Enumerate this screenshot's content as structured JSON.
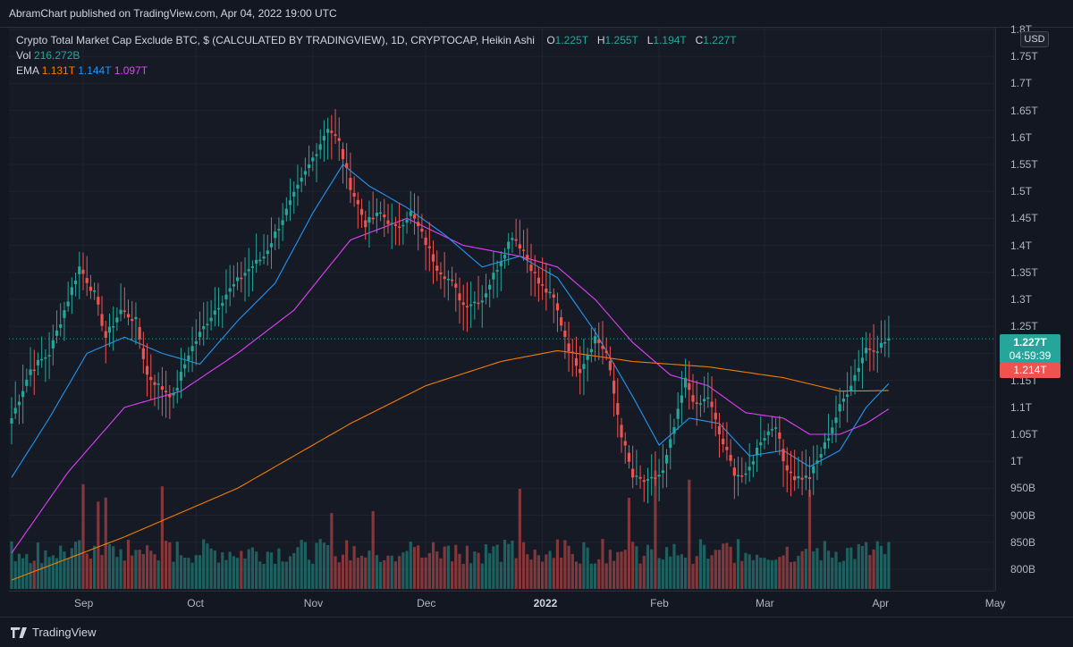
{
  "publish_line": "AbramChart published on TradingView.com, Apr 04, 2022 19:00 UTC",
  "legend": {
    "symbol": "Crypto Total Market Cap Exclude BTC, $ (CALCULATED BY TRADINGVIEW), 1D, CRYPTOCAP, Heikin Ashi",
    "o_label": "O",
    "o_value": "1.225T",
    "h_label": "H",
    "h_value": "1.255T",
    "l_label": "L",
    "l_value": "1.194T",
    "c_label": "C",
    "c_value": "1.227T",
    "vol_label": "Vol",
    "vol_value": "216.272B",
    "ema_label": "EMA",
    "ema_values": [
      "1.131T",
      "1.144T",
      "1.097T"
    ]
  },
  "currency": "USD",
  "last_price": "1.227T",
  "countdown": "04:59:39",
  "close_marker": "1.214T",
  "brand": "TradingView",
  "colors": {
    "up": "#26a69a",
    "down": "#ef5350",
    "ema_long": "#f57c00",
    "ema_mid": "#2196f3",
    "ema_short": "#e040fb"
  },
  "chart_data": {
    "type": "candlestick",
    "title": "Crypto Total Market Cap Exclude BTC",
    "price_axis": {
      "unit": "USD",
      "ticks": [
        {
          "label": "1.8T",
          "value": 1.8
        },
        {
          "label": "1.75T",
          "value": 1.75
        },
        {
          "label": "1.7T",
          "value": 1.7
        },
        {
          "label": "1.65T",
          "value": 1.65
        },
        {
          "label": "1.6T",
          "value": 1.6
        },
        {
          "label": "1.55T",
          "value": 1.55
        },
        {
          "label": "1.5T",
          "value": 1.5
        },
        {
          "label": "1.45T",
          "value": 1.45
        },
        {
          "label": "1.4T",
          "value": 1.4
        },
        {
          "label": "1.35T",
          "value": 1.35
        },
        {
          "label": "1.3T",
          "value": 1.3
        },
        {
          "label": "1.25T",
          "value": 1.25
        },
        {
          "label": "1.2T",
          "value": 1.2
        },
        {
          "label": "1.15T",
          "value": 1.15
        },
        {
          "label": "1.1T",
          "value": 1.1
        },
        {
          "label": "1.05T",
          "value": 1.05
        },
        {
          "label": "1T",
          "value": 1.0
        },
        {
          "label": "950B",
          "value": 0.95
        },
        {
          "label": "900B",
          "value": 0.9
        },
        {
          "label": "850B",
          "value": 0.85
        },
        {
          "label": "800B",
          "value": 0.8
        }
      ]
    },
    "time_axis": {
      "ticks": [
        {
          "label": "Sep",
          "day": 19
        },
        {
          "label": "Oct",
          "day": 49
        },
        {
          "label": "Nov",
          "day": 80
        },
        {
          "label": "Dec",
          "day": 110
        },
        {
          "label": "2022",
          "day": 141
        },
        {
          "label": "Feb",
          "day": 172
        },
        {
          "label": "Mar",
          "day": 200
        },
        {
          "label": "Apr",
          "day": 231
        },
        {
          "label": "May",
          "day": 261
        }
      ]
    },
    "ohlc_anchors": [
      {
        "day": 0,
        "close": 1.08
      },
      {
        "day": 5,
        "close": 1.17
      },
      {
        "day": 10,
        "close": 1.2
      },
      {
        "day": 14,
        "close": 1.28
      },
      {
        "day": 18,
        "close": 1.36
      },
      {
        "day": 22,
        "close": 1.31
      },
      {
        "day": 25,
        "close": 1.23
      },
      {
        "day": 29,
        "close": 1.28
      },
      {
        "day": 33,
        "close": 1.26
      },
      {
        "day": 36,
        "close": 1.16
      },
      {
        "day": 39,
        "close": 1.14
      },
      {
        "day": 43,
        "close": 1.12
      },
      {
        "day": 47,
        "close": 1.2
      },
      {
        "day": 52,
        "close": 1.26
      },
      {
        "day": 57,
        "close": 1.31
      },
      {
        "day": 62,
        "close": 1.35
      },
      {
        "day": 67,
        "close": 1.38
      },
      {
        "day": 72,
        "close": 1.45
      },
      {
        "day": 77,
        "close": 1.52
      },
      {
        "day": 82,
        "close": 1.59
      },
      {
        "day": 84,
        "close": 1.62
      },
      {
        "day": 87,
        "close": 1.59
      },
      {
        "day": 90,
        "close": 1.51
      },
      {
        "day": 94,
        "close": 1.44
      },
      {
        "day": 98,
        "close": 1.46
      },
      {
        "day": 102,
        "close": 1.43
      },
      {
        "day": 106,
        "close": 1.46
      },
      {
        "day": 109,
        "close": 1.42
      },
      {
        "day": 113,
        "close": 1.36
      },
      {
        "day": 117,
        "close": 1.33
      },
      {
        "day": 120,
        "close": 1.29
      },
      {
        "day": 125,
        "close": 1.3
      },
      {
        "day": 129,
        "close": 1.36
      },
      {
        "day": 133,
        "close": 1.42
      },
      {
        "day": 136,
        "close": 1.39
      },
      {
        "day": 140,
        "close": 1.33
      },
      {
        "day": 144,
        "close": 1.3
      },
      {
        "day": 148,
        "close": 1.21
      },
      {
        "day": 151,
        "close": 1.17
      },
      {
        "day": 155,
        "close": 1.23
      },
      {
        "day": 158,
        "close": 1.2
      },
      {
        "day": 162,
        "close": 1.05
      },
      {
        "day": 165,
        "close": 0.97
      },
      {
        "day": 169,
        "close": 0.96
      },
      {
        "day": 173,
        "close": 0.98
      },
      {
        "day": 177,
        "close": 1.09
      },
      {
        "day": 179,
        "close": 1.15
      },
      {
        "day": 182,
        "close": 1.1
      },
      {
        "day": 185,
        "close": 1.12
      },
      {
        "day": 188,
        "close": 1.05
      },
      {
        "day": 192,
        "close": 0.98
      },
      {
        "day": 195,
        "close": 0.97
      },
      {
        "day": 199,
        "close": 1.04
      },
      {
        "day": 203,
        "close": 1.07
      },
      {
        "day": 205,
        "close": 1.0
      },
      {
        "day": 208,
        "close": 0.97
      },
      {
        "day": 212,
        "close": 0.97
      },
      {
        "day": 216,
        "close": 1.03
      },
      {
        "day": 220,
        "close": 1.1
      },
      {
        "day": 224,
        "close": 1.16
      },
      {
        "day": 227,
        "close": 1.21
      },
      {
        "day": 230,
        "close": 1.21
      },
      {
        "day": 233,
        "close": 1.227
      }
    ],
    "ema_long_anchors": [
      {
        "day": 0,
        "value": 0.78
      },
      {
        "day": 30,
        "value": 0.86
      },
      {
        "day": 60,
        "value": 0.95
      },
      {
        "day": 90,
        "value": 1.07
      },
      {
        "day": 110,
        "value": 1.14
      },
      {
        "day": 130,
        "value": 1.185
      },
      {
        "day": 145,
        "value": 1.205
      },
      {
        "day": 165,
        "value": 1.185
      },
      {
        "day": 185,
        "value": 1.175
      },
      {
        "day": 205,
        "value": 1.155
      },
      {
        "day": 220,
        "value": 1.13
      },
      {
        "day": 233,
        "value": 1.131
      }
    ],
    "ema_mid_anchors": [
      {
        "day": 0,
        "value": 0.97
      },
      {
        "day": 10,
        "value": 1.08
      },
      {
        "day": 20,
        "value": 1.2
      },
      {
        "day": 30,
        "value": 1.23
      },
      {
        "day": 40,
        "value": 1.2
      },
      {
        "day": 50,
        "value": 1.18
      },
      {
        "day": 60,
        "value": 1.26
      },
      {
        "day": 70,
        "value": 1.33
      },
      {
        "day": 80,
        "value": 1.46
      },
      {
        "day": 88,
        "value": 1.55
      },
      {
        "day": 95,
        "value": 1.51
      },
      {
        "day": 105,
        "value": 1.47
      },
      {
        "day": 115,
        "value": 1.42
      },
      {
        "day": 125,
        "value": 1.36
      },
      {
        "day": 135,
        "value": 1.38
      },
      {
        "day": 145,
        "value": 1.34
      },
      {
        "day": 155,
        "value": 1.24
      },
      {
        "day": 165,
        "value": 1.12
      },
      {
        "day": 172,
        "value": 1.03
      },
      {
        "day": 180,
        "value": 1.08
      },
      {
        "day": 188,
        "value": 1.07
      },
      {
        "day": 196,
        "value": 1.01
      },
      {
        "day": 205,
        "value": 1.02
      },
      {
        "day": 212,
        "value": 0.99
      },
      {
        "day": 220,
        "value": 1.02
      },
      {
        "day": 227,
        "value": 1.1
      },
      {
        "day": 233,
        "value": 1.144
      }
    ],
    "ema_short_anchors": [
      {
        "day": 0,
        "value": 0.83
      },
      {
        "day": 15,
        "value": 0.98
      },
      {
        "day": 30,
        "value": 1.1
      },
      {
        "day": 45,
        "value": 1.13
      },
      {
        "day": 60,
        "value": 1.2
      },
      {
        "day": 75,
        "value": 1.28
      },
      {
        "day": 90,
        "value": 1.41
      },
      {
        "day": 105,
        "value": 1.45
      },
      {
        "day": 120,
        "value": 1.4
      },
      {
        "day": 135,
        "value": 1.38
      },
      {
        "day": 145,
        "value": 1.36
      },
      {
        "day": 155,
        "value": 1.3
      },
      {
        "day": 165,
        "value": 1.22
      },
      {
        "day": 175,
        "value": 1.16
      },
      {
        "day": 185,
        "value": 1.14
      },
      {
        "day": 195,
        "value": 1.09
      },
      {
        "day": 205,
        "value": 1.08
      },
      {
        "day": 212,
        "value": 1.05
      },
      {
        "day": 220,
        "value": 1.05
      },
      {
        "day": 227,
        "value": 1.07
      },
      {
        "day": 233,
        "value": 1.097
      }
    ],
    "volume_note": "volume histogram in lower pane, bar color follows candle direction",
    "current": {
      "open": 1.225,
      "high": 1.255,
      "low": 1.194,
      "close": 1.227,
      "volume": "216.272B"
    },
    "grid": true
  }
}
